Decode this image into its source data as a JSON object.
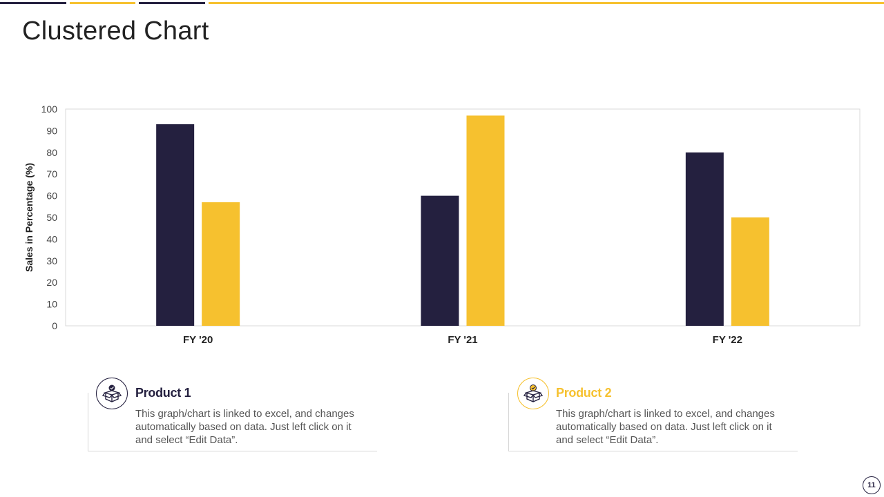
{
  "slide": {
    "title": "Clustered Chart",
    "page_number": "11"
  },
  "colors": {
    "navy": "#24203f",
    "gold": "#f6c12f",
    "grid": "#d9d9d9"
  },
  "chart_data": {
    "type": "bar",
    "title": "",
    "xlabel": "",
    "ylabel": "Sales in Percentage (%)",
    "ylim": [
      0,
      100
    ],
    "yticks": [
      0,
      10,
      20,
      30,
      40,
      50,
      60,
      70,
      80,
      90,
      100
    ],
    "categories": [
      "FY '20",
      "FY '21",
      "FY '22"
    ],
    "series": [
      {
        "name": "Product 1",
        "color": "#24203f",
        "values": [
          93,
          60,
          80
        ]
      },
      {
        "name": "Product 2",
        "color": "#f6c12f",
        "values": [
          57,
          97,
          50
        ]
      }
    ]
  },
  "cards": [
    {
      "title": "Product 1",
      "text": "This graph/chart is linked to excel, and changes automatically based on data. Just left click on it and select “Edit Data”.",
      "icon": "box-icon"
    },
    {
      "title": "Product 2",
      "text": "This graph/chart is linked to excel, and changes automatically based on data. Just left click on it and select “Edit Data”.",
      "icon": "box-check-icon"
    }
  ]
}
